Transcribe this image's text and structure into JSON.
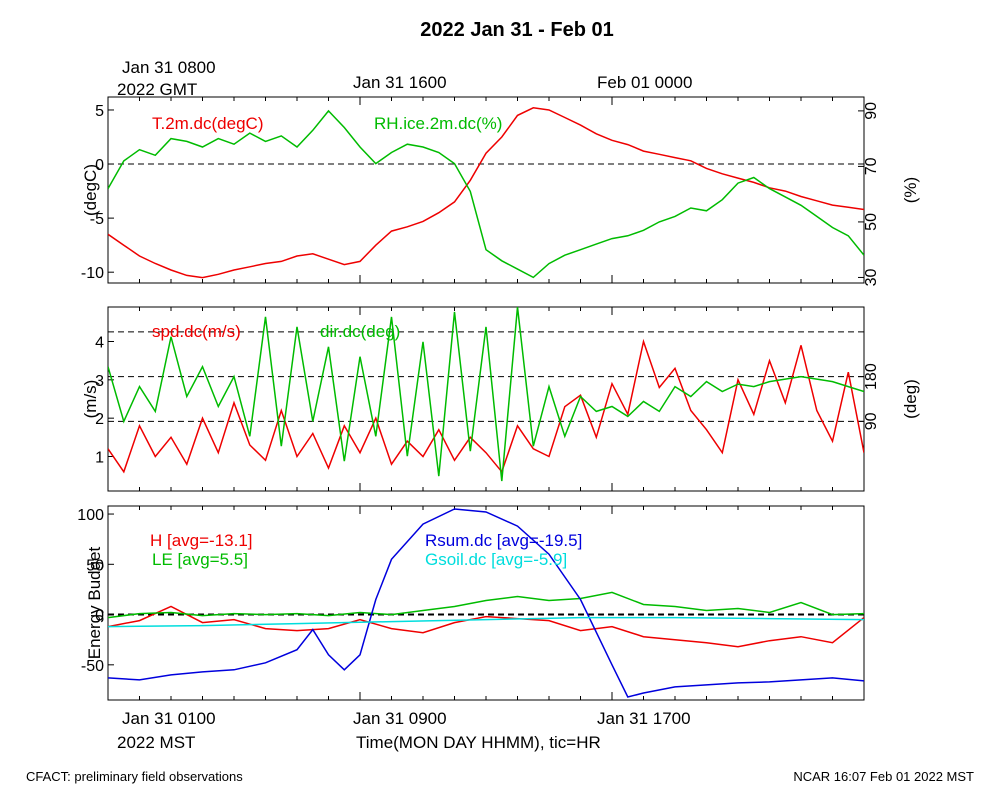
{
  "title": "2022 Jan 31 - Feb 01",
  "top_axis": {
    "first_label_line1": "Jan 31 0800",
    "first_label_line2": "2022 GMT",
    "labels": [
      "Jan 31 1600",
      "Feb 01 0000"
    ]
  },
  "bottom_axis": {
    "first_label_line1": "Jan 31 0100",
    "first_label_line2": "2022 MST",
    "labels": [
      "Jan 31 0900",
      "Jan 31 1700"
    ],
    "xlabel": "Time(MON DAY HHMM), tic=HR"
  },
  "footer": {
    "left": "CFACT: preliminary field observations",
    "right": "NCAR 16:07 Feb 01 2022 MST"
  },
  "colors": {
    "red": "#ee0000",
    "green": "#00bb00",
    "blue": "#0000dd",
    "cyan": "#00dddd"
  },
  "chart_data": [
    {
      "type": "line",
      "panel": "temperature-humidity",
      "x_range_hours_mst": [
        0,
        24
      ],
      "left_axis": {
        "label": "(degC)",
        "ticks": [
          5,
          0,
          -5,
          -10
        ],
        "ylim": [
          -11,
          6.2
        ]
      },
      "right_axis": {
        "label": "(%)",
        "ticks": [
          90,
          70,
          50,
          30
        ],
        "ylim": [
          28,
          95
        ]
      },
      "series": [
        {
          "name": "T.2m.dc(degC)",
          "legend": "T.2m.dc(degC)",
          "axis": "left",
          "color": "red",
          "x": [
            0,
            0.5,
            1,
            1.5,
            2,
            2.5,
            3,
            3.5,
            4,
            4.5,
            5,
            5.5,
            6,
            6.5,
            7,
            7.5,
            8,
            8.5,
            9,
            9.5,
            10,
            10.5,
            11,
            11.5,
            12,
            12.5,
            13,
            13.5,
            14,
            14.5,
            15,
            15.5,
            16,
            16.5,
            17,
            17.5,
            18,
            18.5,
            19,
            19.5,
            20,
            20.5,
            21,
            21.5,
            22,
            22.5,
            23,
            23.5,
            24
          ],
          "values": [
            -6.5,
            -7.5,
            -8.5,
            -9.2,
            -9.8,
            -10.3,
            -10.5,
            -10.2,
            -9.8,
            -9.5,
            -9.2,
            -9,
            -8.5,
            -8.3,
            -8.8,
            -9.3,
            -9,
            -7.5,
            -6.2,
            -5.8,
            -5.3,
            -4.5,
            -3.5,
            -1.5,
            1,
            2.5,
            4.5,
            5.2,
            5,
            4.3,
            3.6,
            2.8,
            2.2,
            1.8,
            1.2,
            0.9,
            0.6,
            0.3,
            -0.4,
            -0.9,
            -1.3,
            -1.7,
            -2.2,
            -2.5,
            -3,
            -3.4,
            -3.8,
            -4,
            -4.2
          ]
        },
        {
          "name": "RH.ice.2m.dc(%)",
          "legend": "RH.ice.2m.dc(%)",
          "axis": "right",
          "color": "green",
          "x": [
            0,
            0.5,
            1,
            1.5,
            2,
            2.5,
            3,
            3.5,
            4,
            4.5,
            5,
            5.5,
            6,
            6.5,
            7,
            7.5,
            8,
            8.5,
            9,
            9.5,
            10,
            10.5,
            11,
            11.5,
            12,
            12.5,
            13,
            13.5,
            14,
            14.5,
            15,
            15.5,
            16,
            16.5,
            17,
            17.5,
            18,
            18.5,
            19,
            19.5,
            20,
            20.5,
            21,
            21.5,
            22,
            22.5,
            23,
            23.5,
            24
          ],
          "values": [
            62,
            72,
            76,
            74,
            80,
            79,
            77,
            80,
            78,
            82,
            79,
            81,
            77,
            83,
            90,
            84,
            77,
            71,
            75,
            78,
            77,
            75,
            71,
            61,
            40,
            36,
            33,
            30,
            35,
            38,
            40,
            42,
            44,
            45,
            47,
            50,
            52,
            55,
            54,
            58,
            64,
            66,
            62,
            59,
            56,
            52,
            48,
            45,
            38
          ]
        }
      ]
    },
    {
      "type": "line",
      "panel": "wind",
      "x_range_hours_mst": [
        0,
        24
      ],
      "left_axis": {
        "label": "(m/s)",
        "ticks": [
          4,
          3,
          2,
          1
        ],
        "ylim": [
          0.1,
          4.9
        ]
      },
      "right_axis": {
        "label": "(deg)",
        "ticks": [
          180,
          90
        ],
        "reference_lines": [
          90,
          180,
          270
        ],
        "ylim": [
          -50,
          320
        ]
      },
      "series": [
        {
          "name": "spd.dc(m/s)",
          "legend": "spd.dc(m/s)",
          "axis": "left",
          "color": "red",
          "x": [
            0,
            0.5,
            1,
            1.5,
            2,
            2.5,
            3,
            3.5,
            4,
            4.5,
            5,
            5.5,
            6,
            6.5,
            7,
            7.5,
            8,
            8.5,
            9,
            9.5,
            10,
            10.5,
            11,
            11.5,
            12,
            12.5,
            13,
            13.5,
            14,
            14.5,
            15,
            15.5,
            16,
            16.5,
            17,
            17.5,
            18,
            18.5,
            19,
            19.5,
            20,
            20.5,
            21,
            21.5,
            22,
            22.5,
            23,
            23.5,
            24
          ],
          "values": [
            1.2,
            0.6,
            1.8,
            1.0,
            1.5,
            0.8,
            2.0,
            1.1,
            2.4,
            1.3,
            0.9,
            2.2,
            1.0,
            1.6,
            0.7,
            1.8,
            1.1,
            2.0,
            0.8,
            1.4,
            1.0,
            1.7,
            0.9,
            1.5,
            1.1,
            0.6,
            1.8,
            1.2,
            1.0,
            2.3,
            2.6,
            1.5,
            2.9,
            2.1,
            4.0,
            2.8,
            3.3,
            2.2,
            1.7,
            1.1,
            3.0,
            2.1,
            3.5,
            2.4,
            3.9,
            2.2,
            1.4,
            3.2,
            1.1
          ]
        },
        {
          "name": "dir.dc(deg)",
          "legend": "dir.dc(deg)",
          "axis": "right",
          "color": "green",
          "x": [
            0,
            0.5,
            1,
            1.5,
            2,
            2.5,
            3,
            3.5,
            4,
            4.5,
            5,
            5.5,
            6,
            6.5,
            7,
            7.5,
            8,
            8.5,
            9,
            9.5,
            10,
            10.5,
            11,
            11.5,
            12,
            12.5,
            13,
            13.5,
            14,
            14.5,
            15,
            15.5,
            16,
            16.5,
            17,
            17.5,
            18,
            18.5,
            19,
            19.5,
            20,
            20.5,
            21,
            21.5,
            22,
            22.5,
            23,
            23.5,
            24
          ],
          "values": [
            200,
            90,
            160,
            110,
            260,
            140,
            200,
            120,
            180,
            60,
            300,
            40,
            280,
            90,
            240,
            10,
            220,
            60,
            300,
            20,
            250,
            -20,
            310,
            30,
            280,
            -30,
            320,
            40,
            160,
            60,
            140,
            110,
            120,
            100,
            130,
            110,
            160,
            140,
            170,
            150,
            165,
            160,
            170,
            175,
            180,
            175,
            170,
            160,
            150
          ]
        }
      ]
    },
    {
      "type": "line",
      "panel": "energy-budget",
      "x_range_hours_mst": [
        0,
        24
      ],
      "left_axis": {
        "label": "Energy Budget",
        "ticks": [
          100,
          50,
          0,
          -50
        ],
        "ylim": [
          -85,
          108
        ]
      },
      "series": [
        {
          "name": "H",
          "legend": "H [avg=-13.1]",
          "color": "red",
          "x": [
            0,
            1,
            2,
            3,
            4,
            5,
            6,
            7,
            8,
            9,
            10,
            11,
            12,
            13,
            14,
            15,
            16,
            17,
            18,
            19,
            20,
            21,
            22,
            23,
            24
          ],
          "values": [
            -12,
            -6,
            8,
            -8,
            -5,
            -14,
            -16,
            -14,
            -5,
            -14,
            -18,
            -8,
            -2,
            -4,
            -6,
            -16,
            -12,
            -22,
            -25,
            -28,
            -32,
            -26,
            -22,
            -28,
            -3
          ]
        },
        {
          "name": "LE",
          "legend": "LE [avg=5.5]",
          "color": "green",
          "x": [
            0,
            1,
            2,
            3,
            4,
            5,
            6,
            7,
            8,
            9,
            10,
            11,
            12,
            13,
            14,
            15,
            16,
            17,
            18,
            19,
            20,
            21,
            22,
            23,
            24
          ],
          "values": [
            -3,
            1,
            2,
            -1,
            1,
            0,
            1,
            -1,
            2,
            0,
            4,
            8,
            14,
            18,
            14,
            16,
            22,
            10,
            8,
            4,
            6,
            2,
            12,
            0,
            1
          ]
        },
        {
          "name": "Rsum.dc",
          "legend": "Rsum.dc [avg=-19.5]",
          "color": "blue",
          "x": [
            0,
            1,
            2,
            3,
            4,
            5,
            6,
            6.5,
            7,
            7.5,
            8,
            8.5,
            9,
            10,
            11,
            12,
            13,
            14,
            15,
            16,
            16.5,
            17,
            18,
            19,
            20,
            21,
            22,
            23,
            24
          ],
          "values": [
            -63,
            -65,
            -60,
            -57,
            -55,
            -48,
            -35,
            -15,
            -40,
            -55,
            -40,
            15,
            55,
            90,
            105,
            102,
            88,
            60,
            15,
            -50,
            -82,
            -78,
            -72,
            -70,
            -68,
            -67,
            -65,
            -63,
            -66
          ]
        },
        {
          "name": "Gsoil.dc",
          "legend": "Gsoil.dc [avg=-5.9]",
          "color": "cyan",
          "x": [
            0,
            3,
            6,
            9,
            12,
            15,
            18,
            21,
            24
          ],
          "values": [
            -12,
            -11,
            -9,
            -7,
            -5,
            -3,
            -3,
            -4,
            -5
          ]
        }
      ]
    }
  ]
}
